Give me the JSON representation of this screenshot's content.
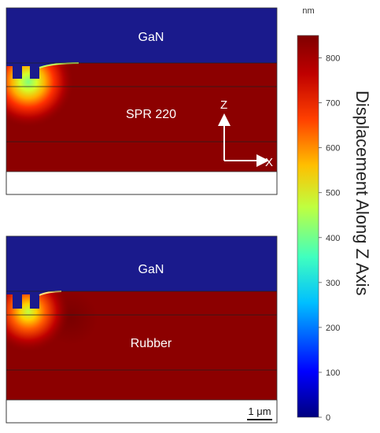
{
  "top_panel": {
    "top_layer_label": "GaN",
    "middle_layer_label": "SPR 220",
    "axis_z_label": "Z",
    "axis_x_label": "X"
  },
  "bottom_panel": {
    "top_layer_label": "GaN",
    "middle_layer_label": "Rubber",
    "scale_bar_label": "1 μm"
  },
  "colorbar": {
    "unit": "nm",
    "title": "Displacement Along Z Axis",
    "ticks": [
      "0",
      "100",
      "200",
      "300",
      "400",
      "500",
      "600",
      "700",
      "800"
    ],
    "range": [
      0,
      850
    ],
    "colors": [
      "#00007f",
      "#0000ff",
      "#00bfff",
      "#40ffbf",
      "#bfff40",
      "#ffbf00",
      "#ff4000",
      "#bf0000",
      "#7f0000"
    ]
  }
}
